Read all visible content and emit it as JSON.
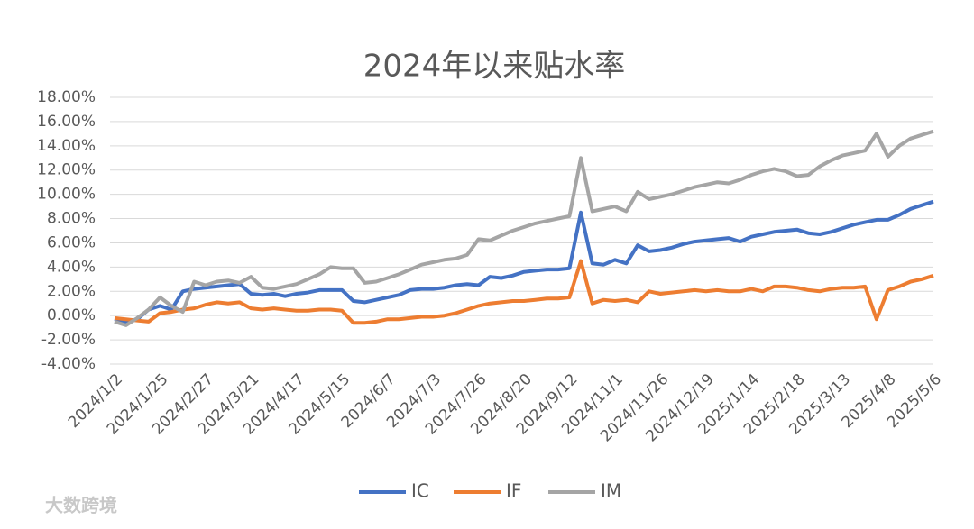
{
  "chart_data": {
    "type": "line",
    "title": "2024年以来贴水率",
    "categories": [
      "2024/1/2",
      null,
      null,
      null,
      "2024/1/25",
      null,
      null,
      null,
      "2024/2/27",
      null,
      null,
      null,
      "2024/3/21",
      null,
      null,
      null,
      "2024/4/17",
      null,
      null,
      null,
      "2024/5/15",
      null,
      null,
      null,
      "2024/6/7",
      null,
      null,
      null,
      "2024/7/3",
      null,
      null,
      null,
      "2024/7/26",
      null,
      null,
      null,
      "2024/8/20",
      null,
      null,
      null,
      "2024/9/12",
      null,
      null,
      null,
      "2024/11/1",
      null,
      null,
      null,
      "2024/11/26",
      null,
      null,
      null,
      "2024/12/19",
      null,
      null,
      null,
      "2025/1/14",
      null,
      null,
      null,
      "2025/2/18",
      null,
      null,
      null,
      "2025/3/13",
      null,
      null,
      null,
      "2025/4/8",
      null,
      null,
      null,
      "2025/5/6"
    ],
    "series": [
      {
        "name": "IC",
        "color": "#4472c4",
        "values": [
          -0.3,
          -0.5,
          -0.3,
          0.5,
          0.8,
          0.5,
          2.0,
          2.2,
          2.3,
          2.4,
          2.5,
          2.6,
          1.8,
          1.7,
          1.8,
          1.6,
          1.8,
          1.9,
          2.1,
          2.1,
          2.1,
          1.2,
          1.1,
          1.3,
          1.5,
          1.7,
          2.1,
          2.2,
          2.2,
          2.3,
          2.5,
          2.6,
          2.5,
          3.2,
          3.1,
          3.3,
          3.6,
          3.7,
          3.8,
          3.8,
          3.9,
          8.5,
          4.3,
          4.2,
          4.6,
          4.3,
          5.8,
          5.3,
          5.4,
          5.6,
          5.9,
          6.1,
          6.2,
          6.3,
          6.4,
          6.1,
          6.5,
          6.7,
          6.9,
          7.0,
          7.1,
          6.8,
          6.7,
          6.9,
          7.2,
          7.5,
          7.7,
          7.9,
          7.9,
          8.3,
          8.8,
          9.1,
          9.4
        ]
      },
      {
        "name": "IF",
        "color": "#ed7d31",
        "values": [
          -0.2,
          -0.3,
          -0.4,
          -0.5,
          0.2,
          0.3,
          0.5,
          0.6,
          0.9,
          1.1,
          1.0,
          1.1,
          0.6,
          0.5,
          0.6,
          0.5,
          0.4,
          0.4,
          0.5,
          0.5,
          0.4,
          -0.6,
          -0.6,
          -0.5,
          -0.3,
          -0.3,
          -0.2,
          -0.1,
          -0.1,
          0.0,
          0.2,
          0.5,
          0.8,
          1.0,
          1.1,
          1.2,
          1.2,
          1.3,
          1.4,
          1.4,
          1.5,
          4.5,
          1.0,
          1.3,
          1.2,
          1.3,
          1.1,
          2.0,
          1.8,
          1.9,
          2.0,
          2.1,
          2.0,
          2.1,
          2.0,
          2.0,
          2.2,
          2.0,
          2.4,
          2.4,
          2.3,
          2.1,
          2.0,
          2.2,
          2.3,
          2.3,
          2.4,
          -0.3,
          2.1,
          2.4,
          2.8,
          3.0,
          3.3
        ]
      },
      {
        "name": "IM",
        "color": "#a5a5a5",
        "values": [
          -0.5,
          -0.8,
          -0.2,
          0.5,
          1.5,
          0.8,
          0.3,
          2.8,
          2.5,
          2.8,
          2.9,
          2.7,
          3.2,
          2.3,
          2.2,
          2.4,
          2.6,
          3.0,
          3.4,
          4.0,
          3.9,
          3.9,
          2.7,
          2.8,
          3.1,
          3.4,
          3.8,
          4.2,
          4.4,
          4.6,
          4.7,
          5.0,
          6.3,
          6.2,
          6.6,
          7.0,
          7.3,
          7.6,
          7.8,
          8.0,
          8.2,
          13.0,
          8.6,
          8.8,
          9.0,
          8.6,
          10.2,
          9.6,
          9.8,
          10.0,
          10.3,
          10.6,
          10.8,
          11.0,
          10.9,
          11.2,
          11.6,
          11.9,
          12.1,
          11.9,
          11.5,
          11.6,
          12.3,
          12.8,
          13.2,
          13.4,
          13.6,
          15.0,
          13.1,
          14.0,
          14.6,
          14.9,
          15.2
        ]
      }
    ],
    "ylim": [
      -4,
      18
    ],
    "yticks": [
      {
        "value": -4,
        "label": "-4.00%"
      },
      {
        "value": -2,
        "label": "-2.00%"
      },
      {
        "value": 0,
        "label": "0.00%"
      },
      {
        "value": 2,
        "label": "2.00%"
      },
      {
        "value": 4,
        "label": "4.00%"
      },
      {
        "value": 6,
        "label": "6.00%"
      },
      {
        "value": 8,
        "label": "8.00%"
      },
      {
        "value": 10,
        "label": "10.00%"
      },
      {
        "value": 12,
        "label": "12.00%"
      },
      {
        "value": 14,
        "label": "14.00%"
      },
      {
        "value": 16,
        "label": "16.00%"
      },
      {
        "value": 18,
        "label": "18.00%"
      }
    ],
    "grid": true,
    "legend": "bottom"
  },
  "watermark": "大数跨境"
}
